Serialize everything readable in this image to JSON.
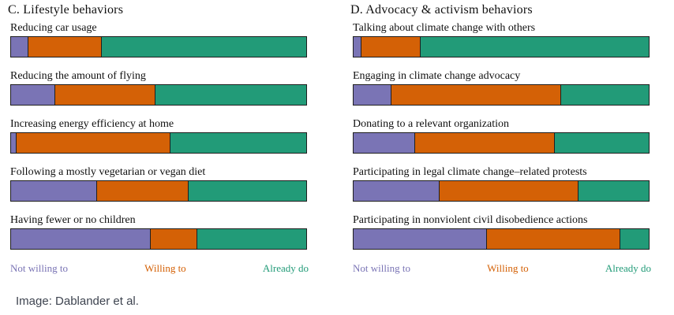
{
  "caption": "Image: Dablander et al.",
  "colors": {
    "not_willing": "#7a74b5",
    "willing": "#d46106",
    "already_do": "#229b78",
    "bar_border": "#1f1f1f",
    "label_text": "#101010",
    "caption_text": "#3e4450"
  },
  "legend": {
    "not_willing": "Not willing to",
    "willing": "Willing to",
    "already_do": "Already do"
  },
  "chart_data": [
    {
      "type": "bar",
      "stacked": true,
      "orientation": "horizontal",
      "unit": "percent of respondents (estimated from bar lengths)",
      "title": "C. Lifestyle behaviors",
      "series_names": [
        "Not willing to",
        "Willing to",
        "Already do"
      ],
      "categories": [
        "Reducing car usage",
        "Reducing the amount of flying",
        "Increasing energy efficiency at home",
        "Following a mostly vegetarian or vegan diet",
        "Having fewer or no children"
      ],
      "values": [
        [
          6,
          25,
          69
        ],
        [
          15,
          34,
          51
        ],
        [
          2,
          52,
          46
        ],
        [
          29,
          31,
          40
        ],
        [
          47,
          16,
          37
        ]
      ],
      "xlim": [
        0,
        100
      ],
      "grid": false,
      "legend_position": "bottom"
    },
    {
      "type": "bar",
      "stacked": true,
      "orientation": "horizontal",
      "unit": "percent of respondents (estimated from bar lengths)",
      "title": "D. Advocacy & activism behaviors",
      "series_names": [
        "Not willing to",
        "Willing to",
        "Already do"
      ],
      "categories": [
        "Talking about climate change with others",
        "Engaging in climate change advocacy",
        "Donating to a relevant organization",
        "Participating in legal climate change–related protests",
        "Participating in nonviolent civil disobedience actions"
      ],
      "values": [
        [
          3,
          20,
          77
        ],
        [
          13,
          57,
          30
        ],
        [
          21,
          47,
          32
        ],
        [
          29,
          47,
          24
        ],
        [
          45,
          45,
          10
        ]
      ],
      "xlim": [
        0,
        100
      ],
      "grid": false,
      "legend_position": "bottom"
    }
  ]
}
